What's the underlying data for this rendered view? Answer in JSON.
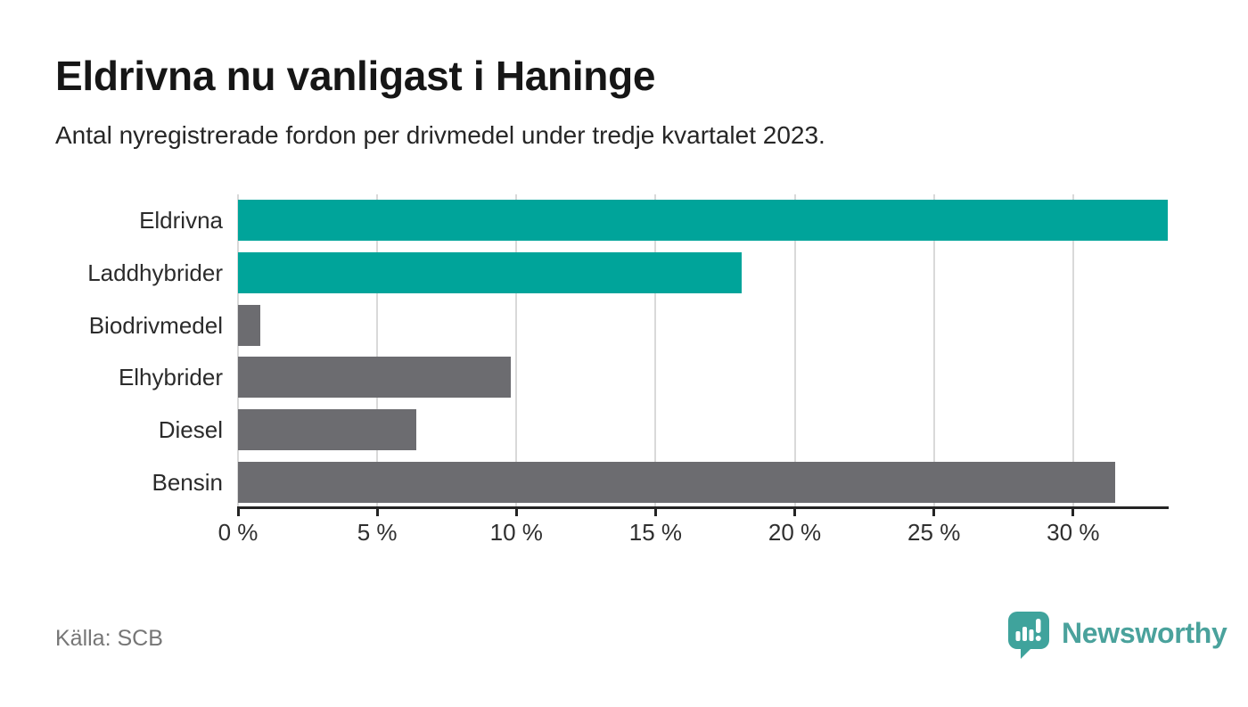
{
  "chart_data": {
    "type": "bar",
    "orientation": "horizontal",
    "title": "Eldrivna nu vanligast i Haninge",
    "subtitle": "Antal nyregistrerade fordon per drivmedel under tredje kvartalet 2023.",
    "categories": [
      "Eldrivna",
      "Laddhybrider",
      "Biodrivmedel",
      "Elhybrider",
      "Diesel",
      "Bensin"
    ],
    "values": [
      33.4,
      18.1,
      0.8,
      9.8,
      6.4,
      31.5
    ],
    "unit": "%",
    "xlim": [
      0,
      33.4
    ],
    "x_ticks": [
      0,
      5,
      10,
      15,
      20,
      25,
      30
    ],
    "x_tick_labels": [
      "0 %",
      "5 %",
      "10 %",
      "15 %",
      "20 %",
      "25 %",
      "30 %"
    ],
    "bar_colors": [
      "#00a49a",
      "#00a49a",
      "#6c6c70",
      "#6c6c70",
      "#6c6c70",
      "#6c6c70"
    ],
    "highlight_color": "#00a49a",
    "default_color": "#6c6c70",
    "grid": true,
    "gridline_color": "#d9d9d9",
    "axis_color": "#242424",
    "legend": "none"
  },
  "footer": {
    "source": "Källa: SCB",
    "brand_name": "Newsworthy",
    "brand_color": "#4aa29c",
    "logo_icon": "bar-chart-speech-bubble-icon"
  }
}
